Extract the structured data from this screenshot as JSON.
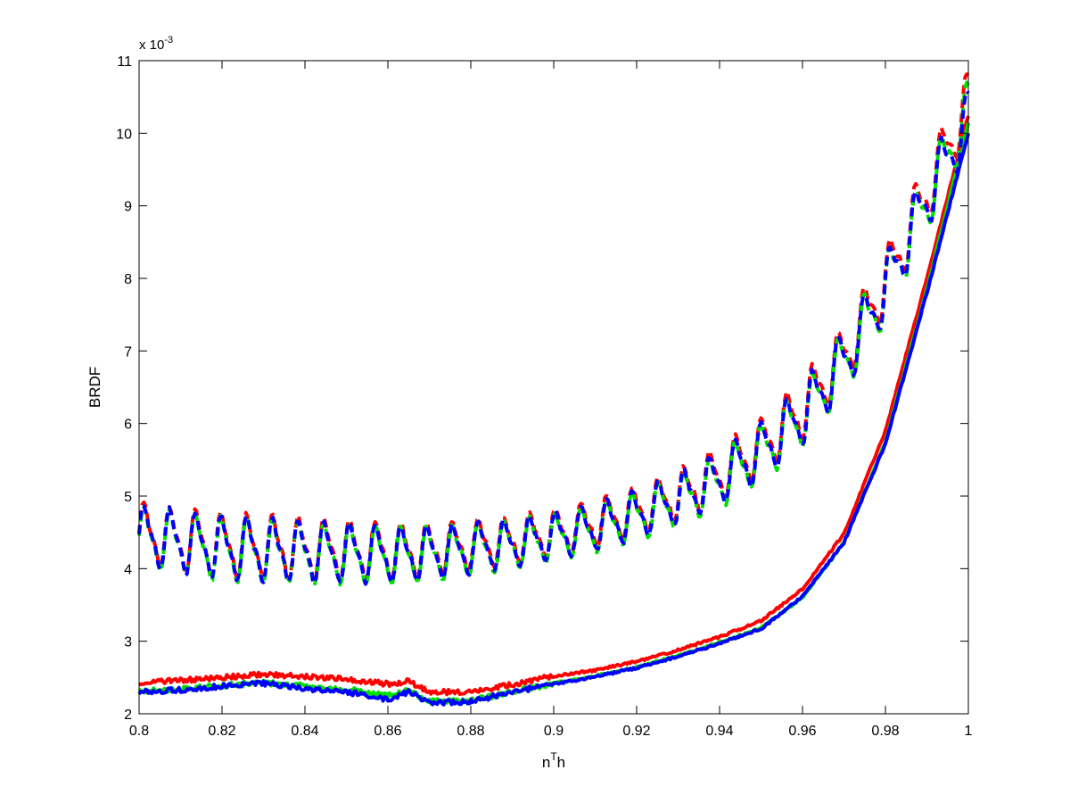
{
  "chart_data": {
    "type": "line",
    "xlabel": "n",
    "xlabel_sup": "T",
    "xlabel_suffix": "h",
    "ylabel": "BRDF",
    "exponent_label": "x 10",
    "exponent_power": "-3",
    "xlim": [
      0.8,
      1.0
    ],
    "ylim": [
      2,
      11
    ],
    "y_scale_factor": 0.001,
    "grid": false,
    "legend": "none",
    "x_ticks": [
      "0.8",
      "0.82",
      "0.84",
      "0.86",
      "0.88",
      "0.9",
      "0.92",
      "0.94",
      "0.96",
      "0.98",
      "1"
    ],
    "y_ticks": [
      "2",
      "3",
      "4",
      "5",
      "6",
      "7",
      "8",
      "9",
      "10",
      "11"
    ],
    "series": [
      {
        "color": "#ff0000",
        "style": "solid",
        "points": [
          [
            0.8,
            2.43
          ],
          [
            0.81,
            2.46
          ],
          [
            0.82,
            2.5
          ],
          [
            0.83,
            2.54
          ],
          [
            0.84,
            2.52
          ],
          [
            0.85,
            2.48
          ],
          [
            0.86,
            2.41
          ],
          [
            0.865,
            2.45
          ],
          [
            0.87,
            2.3
          ],
          [
            0.88,
            2.3
          ],
          [
            0.89,
            2.4
          ],
          [
            0.9,
            2.52
          ],
          [
            0.91,
            2.6
          ],
          [
            0.92,
            2.72
          ],
          [
            0.93,
            2.88
          ],
          [
            0.94,
            3.06
          ],
          [
            0.95,
            3.28
          ],
          [
            0.96,
            3.72
          ],
          [
            0.97,
            4.48
          ],
          [
            0.98,
            5.9
          ],
          [
            0.99,
            8.0
          ],
          [
            1.0,
            10.25
          ]
        ]
      },
      {
        "color": "#00dd00",
        "style": "solid",
        "points": [
          [
            0.8,
            2.31
          ],
          [
            0.81,
            2.34
          ],
          [
            0.82,
            2.39
          ],
          [
            0.83,
            2.43
          ],
          [
            0.84,
            2.38
          ],
          [
            0.85,
            2.34
          ],
          [
            0.86,
            2.25
          ],
          [
            0.865,
            2.32
          ],
          [
            0.87,
            2.17
          ],
          [
            0.88,
            2.18
          ],
          [
            0.89,
            2.3
          ],
          [
            0.9,
            2.42
          ],
          [
            0.91,
            2.52
          ],
          [
            0.92,
            2.64
          ],
          [
            0.93,
            2.8
          ],
          [
            0.94,
            2.98
          ],
          [
            0.95,
            3.18
          ],
          [
            0.96,
            3.6
          ],
          [
            0.97,
            4.36
          ],
          [
            0.98,
            5.75
          ],
          [
            0.99,
            7.85
          ],
          [
            1.0,
            10.15
          ]
        ]
      },
      {
        "color": "#0000ff",
        "style": "solid",
        "points": [
          [
            0.8,
            2.3
          ],
          [
            0.81,
            2.33
          ],
          [
            0.82,
            2.38
          ],
          [
            0.83,
            2.42
          ],
          [
            0.84,
            2.35
          ],
          [
            0.85,
            2.3
          ],
          [
            0.86,
            2.2
          ],
          [
            0.865,
            2.3
          ],
          [
            0.87,
            2.15
          ],
          [
            0.88,
            2.17
          ],
          [
            0.89,
            2.3
          ],
          [
            0.9,
            2.41
          ],
          [
            0.91,
            2.51
          ],
          [
            0.92,
            2.63
          ],
          [
            0.93,
            2.79
          ],
          [
            0.94,
            2.97
          ],
          [
            0.95,
            3.17
          ],
          [
            0.96,
            3.62
          ],
          [
            0.97,
            4.36
          ],
          [
            0.98,
            5.72
          ],
          [
            0.99,
            7.8
          ],
          [
            1.0,
            10.0
          ]
        ]
      },
      {
        "color": "#ff0000",
        "style": "dashed",
        "points": [
          [
            0.8,
            4.5
          ],
          [
            0.81,
            4.4
          ],
          [
            0.82,
            4.32
          ],
          [
            0.83,
            4.3
          ],
          [
            0.84,
            4.28
          ],
          [
            0.85,
            4.26
          ],
          [
            0.86,
            4.24
          ],
          [
            0.87,
            4.26
          ],
          [
            0.88,
            4.33
          ],
          [
            0.89,
            4.4
          ],
          [
            0.9,
            4.5
          ],
          [
            0.91,
            4.63
          ],
          [
            0.92,
            4.8
          ],
          [
            0.93,
            5.02
          ],
          [
            0.94,
            5.3
          ],
          [
            0.95,
            5.68
          ],
          [
            0.96,
            6.2
          ],
          [
            0.97,
            6.95
          ],
          [
            0.98,
            7.95
          ],
          [
            0.99,
            9.2
          ],
          [
            1.0,
            10.45
          ]
        ]
      },
      {
        "color": "#00dd00",
        "style": "dashed",
        "points": [
          [
            0.8,
            4.45
          ],
          [
            0.81,
            4.35
          ],
          [
            0.82,
            4.27
          ],
          [
            0.83,
            4.24
          ],
          [
            0.84,
            4.22
          ],
          [
            0.85,
            4.2
          ],
          [
            0.86,
            4.18
          ],
          [
            0.87,
            4.2
          ],
          [
            0.88,
            4.26
          ],
          [
            0.89,
            4.33
          ],
          [
            0.9,
            4.43
          ],
          [
            0.91,
            4.56
          ],
          [
            0.92,
            4.72
          ],
          [
            0.93,
            4.94
          ],
          [
            0.94,
            5.22
          ],
          [
            0.95,
            5.6
          ],
          [
            0.96,
            6.1
          ],
          [
            0.97,
            6.85
          ],
          [
            0.98,
            7.85
          ],
          [
            0.99,
            9.1
          ],
          [
            1.0,
            10.3
          ]
        ]
      },
      {
        "color": "#0000ff",
        "style": "dashed",
        "points": [
          [
            0.8,
            4.47
          ],
          [
            0.81,
            4.37
          ],
          [
            0.82,
            4.29
          ],
          [
            0.83,
            4.26
          ],
          [
            0.84,
            4.24
          ],
          [
            0.85,
            4.22
          ],
          [
            0.86,
            4.2
          ],
          [
            0.87,
            4.22
          ],
          [
            0.88,
            4.28
          ],
          [
            0.89,
            4.35
          ],
          [
            0.9,
            4.45
          ],
          [
            0.91,
            4.58
          ],
          [
            0.92,
            4.74
          ],
          [
            0.93,
            4.96
          ],
          [
            0.94,
            5.24
          ],
          [
            0.95,
            5.62
          ],
          [
            0.96,
            6.12
          ],
          [
            0.97,
            6.87
          ],
          [
            0.98,
            7.87
          ],
          [
            0.99,
            9.12
          ],
          [
            1.0,
            10.2
          ]
        ]
      }
    ]
  }
}
